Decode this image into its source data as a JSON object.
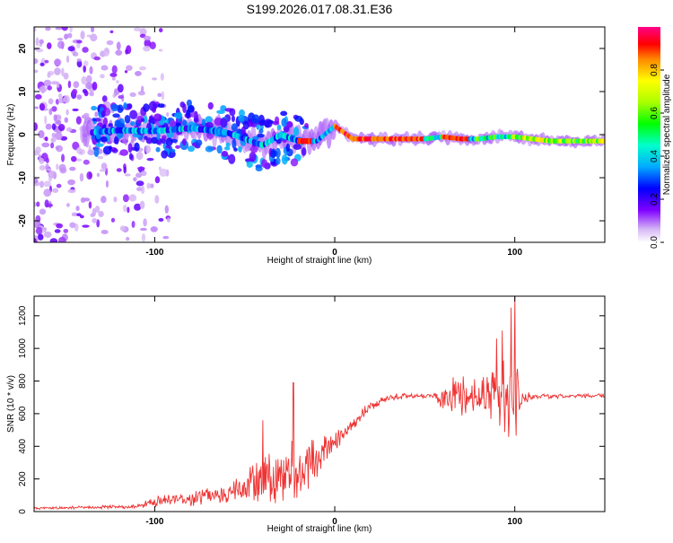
{
  "title": "S199.2026.017.08.31.E36",
  "colors": {
    "trace": "#ee3333",
    "axis": "#000000"
  },
  "chart_data": [
    {
      "type": "heatmap",
      "xlabel": "Height of straight line (km)",
      "ylabel": "Frequency (Hz)",
      "xlim": [
        -167,
        150
      ],
      "ylim": [
        -25,
        25
      ],
      "xticks": [
        -100,
        0,
        100
      ],
      "yticks": [
        20,
        10,
        0,
        -10,
        -20
      ],
      "description": "Doppler frequency vs height, amplitude normalized; noisy speckle below -120 km, a ridge near 0 Hz across the range",
      "ridge": {
        "x": [
          -135,
          -120,
          -100,
          -80,
          -60,
          -40,
          -30,
          -20,
          -10,
          0,
          10,
          30,
          50,
          60,
          70,
          80,
          90,
          100,
          120,
          150
        ],
        "y": [
          0.5,
          1.0,
          0.8,
          1.5,
          0.5,
          -2.5,
          0,
          -1.5,
          -1.5,
          2,
          -1,
          -1,
          -1,
          -0.5,
          -1,
          -1,
          -0.5,
          -0.5,
          -1.5,
          -1.5
        ]
      },
      "colorbar": {
        "label": "Normalized spectral amplitude",
        "range": [
          0,
          1
        ],
        "ticks": [
          "0.0",
          "0.2",
          "0.4",
          "0.6",
          "0.8"
        ]
      }
    },
    {
      "type": "line",
      "xlabel": "Height of straight line (km)",
      "ylabel": "SNR (10 * v/v)",
      "xlim": [
        -167,
        150
      ],
      "ylim": [
        0,
        1320
      ],
      "xticks": [
        -100,
        0,
        100
      ],
      "yticks": [
        0,
        200,
        400,
        600,
        800,
        1000,
        1200
      ],
      "series": [
        {
          "name": "SNR",
          "baseline_x": [
            -167,
            -140,
            -110,
            -100,
            -80,
            -60,
            -50,
            -40,
            -30,
            -20,
            -10,
            0,
            10,
            20,
            30,
            40,
            50,
            60,
            70,
            80,
            90,
            100,
            110,
            130,
            150
          ],
          "baseline_y": [
            20,
            25,
            30,
            60,
            80,
            110,
            150,
            200,
            230,
            270,
            330,
            420,
            540,
            650,
            700,
            710,
            710,
            710,
            705,
            715,
            710,
            700,
            705,
            710,
            710
          ],
          "noise_x": [
            -167,
            -110,
            -100,
            -60,
            -50,
            -40,
            -30,
            -20,
            -10,
            0,
            10,
            30,
            55,
            60,
            70,
            80,
            85,
            90,
            95,
            100,
            104,
            110,
            150
          ],
          "noise_y": [
            8,
            12,
            35,
            60,
            90,
            160,
            180,
            200,
            130,
            60,
            40,
            20,
            15,
            110,
            130,
            90,
            160,
            190,
            230,
            330,
            60,
            15,
            15
          ],
          "spikes_x": [
            -40,
            -23,
            90,
            93,
            98,
            100
          ],
          "spikes_y": [
            560,
            790,
            1060,
            1110,
            1250,
            1330
          ]
        }
      ]
    }
  ]
}
